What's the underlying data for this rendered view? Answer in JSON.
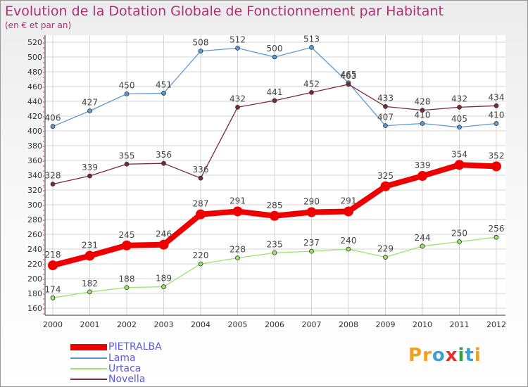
{
  "title": "Evolution de la Dotation Globale de Fonctionnement par Habitant",
  "subtitle": "(en € et par an)",
  "logo": {
    "letters": [
      "P",
      "r",
      "o",
      "x",
      "i",
      "t",
      "i"
    ],
    "colors": [
      "#f0a020",
      "#f0a020",
      "#3aa0d8",
      "#e03030",
      "#30a040",
      "#3aa0d8",
      "#f0a020"
    ]
  },
  "chart_data": {
    "type": "line",
    "x": [
      "2000",
      "2001",
      "2002",
      "2003",
      "2004",
      "2005",
      "2006",
      "2007",
      "2008",
      "2009",
      "2010",
      "2011",
      "2012"
    ],
    "ylim": [
      160,
      520
    ],
    "yticks": [
      160,
      180,
      200,
      220,
      240,
      260,
      280,
      300,
      320,
      340,
      360,
      380,
      400,
      420,
      440,
      460,
      480,
      500,
      520
    ],
    "grid": true,
    "legend_position": "bottom-left",
    "series": [
      {
        "name": "PIETRALBA",
        "color": "#ee0000",
        "values": [
          218,
          231,
          245,
          246,
          287,
          291,
          285,
          290,
          291,
          325,
          339,
          354,
          352
        ]
      },
      {
        "name": "Lama",
        "color": "#5b9bd5",
        "values": [
          406,
          427,
          450,
          451,
          508,
          512,
          500,
          513,
          465,
          407,
          410,
          405,
          410
        ]
      },
      {
        "name": "Urtaca",
        "color": "#9be36b",
        "values": [
          174,
          182,
          188,
          189,
          220,
          228,
          235,
          237,
          240,
          229,
          244,
          250,
          256
        ]
      },
      {
        "name": "Novella",
        "color": "#7a2a33",
        "values": [
          328,
          339,
          355,
          356,
          336,
          432,
          441,
          452,
          463,
          433,
          428,
          432,
          434
        ]
      }
    ]
  }
}
